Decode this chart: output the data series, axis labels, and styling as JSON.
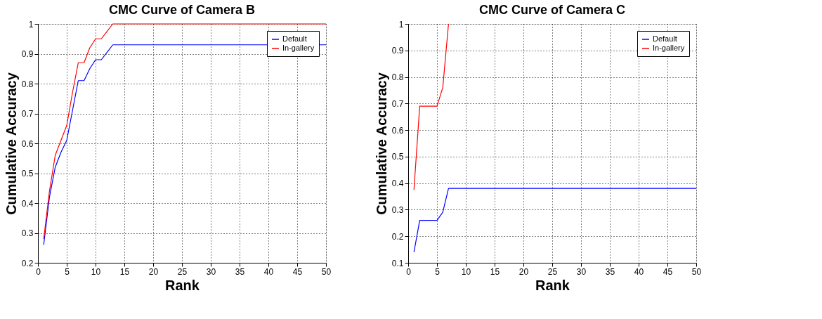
{
  "chart_data": [
    {
      "type": "line",
      "title": "CMC Curve of Camera B",
      "xlabel": "Rank",
      "ylabel": "Cumulative Accuracy",
      "xlim": [
        0,
        50
      ],
      "xticks": [
        0,
        5,
        10,
        15,
        20,
        25,
        30,
        35,
        40,
        45,
        50
      ],
      "ylim": [
        0.2,
        1
      ],
      "yticks": [
        0.2,
        0.3,
        0.4,
        0.5,
        0.6,
        0.7,
        0.8,
        0.9,
        1
      ],
      "grid": true,
      "legend": "top right",
      "line_style": "solid",
      "series": [
        {
          "name": "Default",
          "color": "#0000ff",
          "x": [
            1,
            2,
            3,
            4,
            5,
            6,
            7,
            8,
            9,
            10,
            11,
            12,
            13,
            50
          ],
          "values": [
            0.26,
            0.42,
            0.52,
            0.57,
            0.61,
            0.71,
            0.81,
            0.81,
            0.85,
            0.88,
            0.88,
            0.905,
            0.93,
            0.93
          ]
        },
        {
          "name": "In-gallery",
          "color": "#ff0000",
          "x": [
            1,
            2,
            3,
            4,
            5,
            6,
            7,
            8,
            9,
            10,
            11,
            12,
            13,
            50
          ],
          "values": [
            0.28,
            0.44,
            0.56,
            0.61,
            0.66,
            0.77,
            0.87,
            0.87,
            0.92,
            0.95,
            0.95,
            0.975,
            1.0,
            1.0
          ]
        }
      ]
    },
    {
      "type": "line",
      "title": "CMC Curve of Camera C",
      "xlabel": "Rank",
      "ylabel": "Cumulative Accuracy",
      "xlim": [
        0,
        50
      ],
      "xticks": [
        0,
        5,
        10,
        15,
        20,
        25,
        30,
        35,
        40,
        45,
        50
      ],
      "ylim": [
        0.1,
        1
      ],
      "yticks": [
        0.1,
        0.2,
        0.3,
        0.4,
        0.5,
        0.6,
        0.7,
        0.8,
        0.9,
        1
      ],
      "grid": true,
      "legend": "top right",
      "line_style": "solid",
      "series": [
        {
          "name": "Default",
          "color": "#0000ff",
          "x": [
            1,
            2,
            5,
            6,
            7,
            50
          ],
          "values": [
            0.14,
            0.26,
            0.26,
            0.29,
            0.38,
            0.38
          ]
        },
        {
          "name": "In-gallery",
          "color": "#ff0000",
          "x": [
            1,
            2,
            5,
            6,
            7
          ],
          "values": [
            0.375,
            0.69,
            0.69,
            0.76,
            1.0
          ]
        }
      ]
    }
  ]
}
